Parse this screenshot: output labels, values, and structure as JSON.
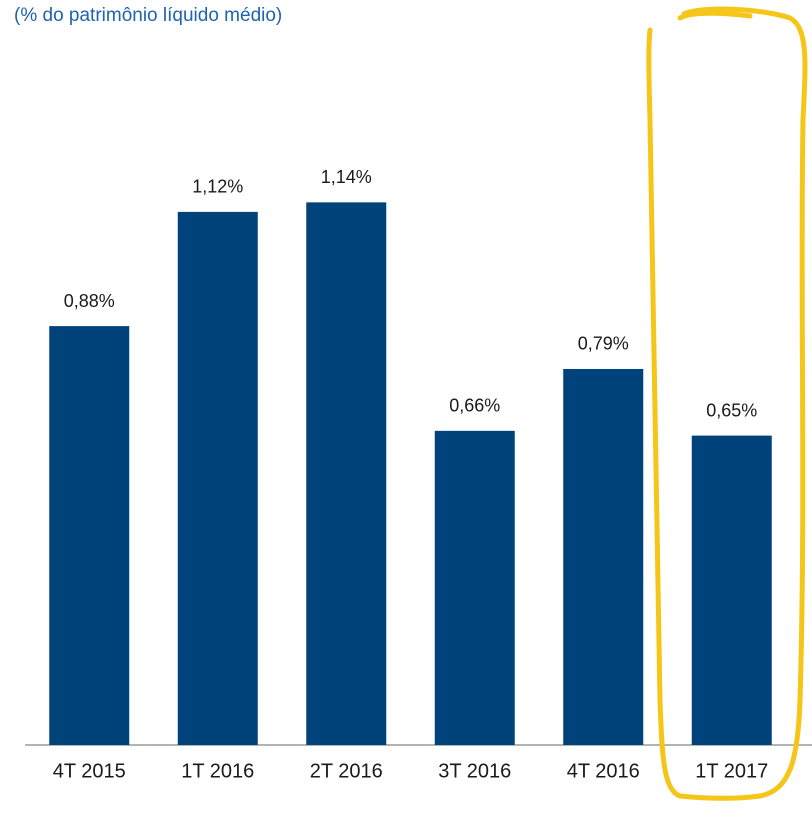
{
  "chart_data": {
    "type": "bar",
    "subtitle": "(% do patrimônio líquido médio)",
    "categories": [
      "4T 2015",
      "1T 2016",
      "2T 2016",
      "3T 2016",
      "4T 2016",
      "1T 2017"
    ],
    "values": [
      0.88,
      1.12,
      1.14,
      0.66,
      0.79,
      0.65
    ],
    "value_labels": [
      "0,88%",
      "1,12%",
      "1,14%",
      "0,66%",
      "0,79%",
      "0,65%"
    ],
    "color": "#00427a"
  }
}
